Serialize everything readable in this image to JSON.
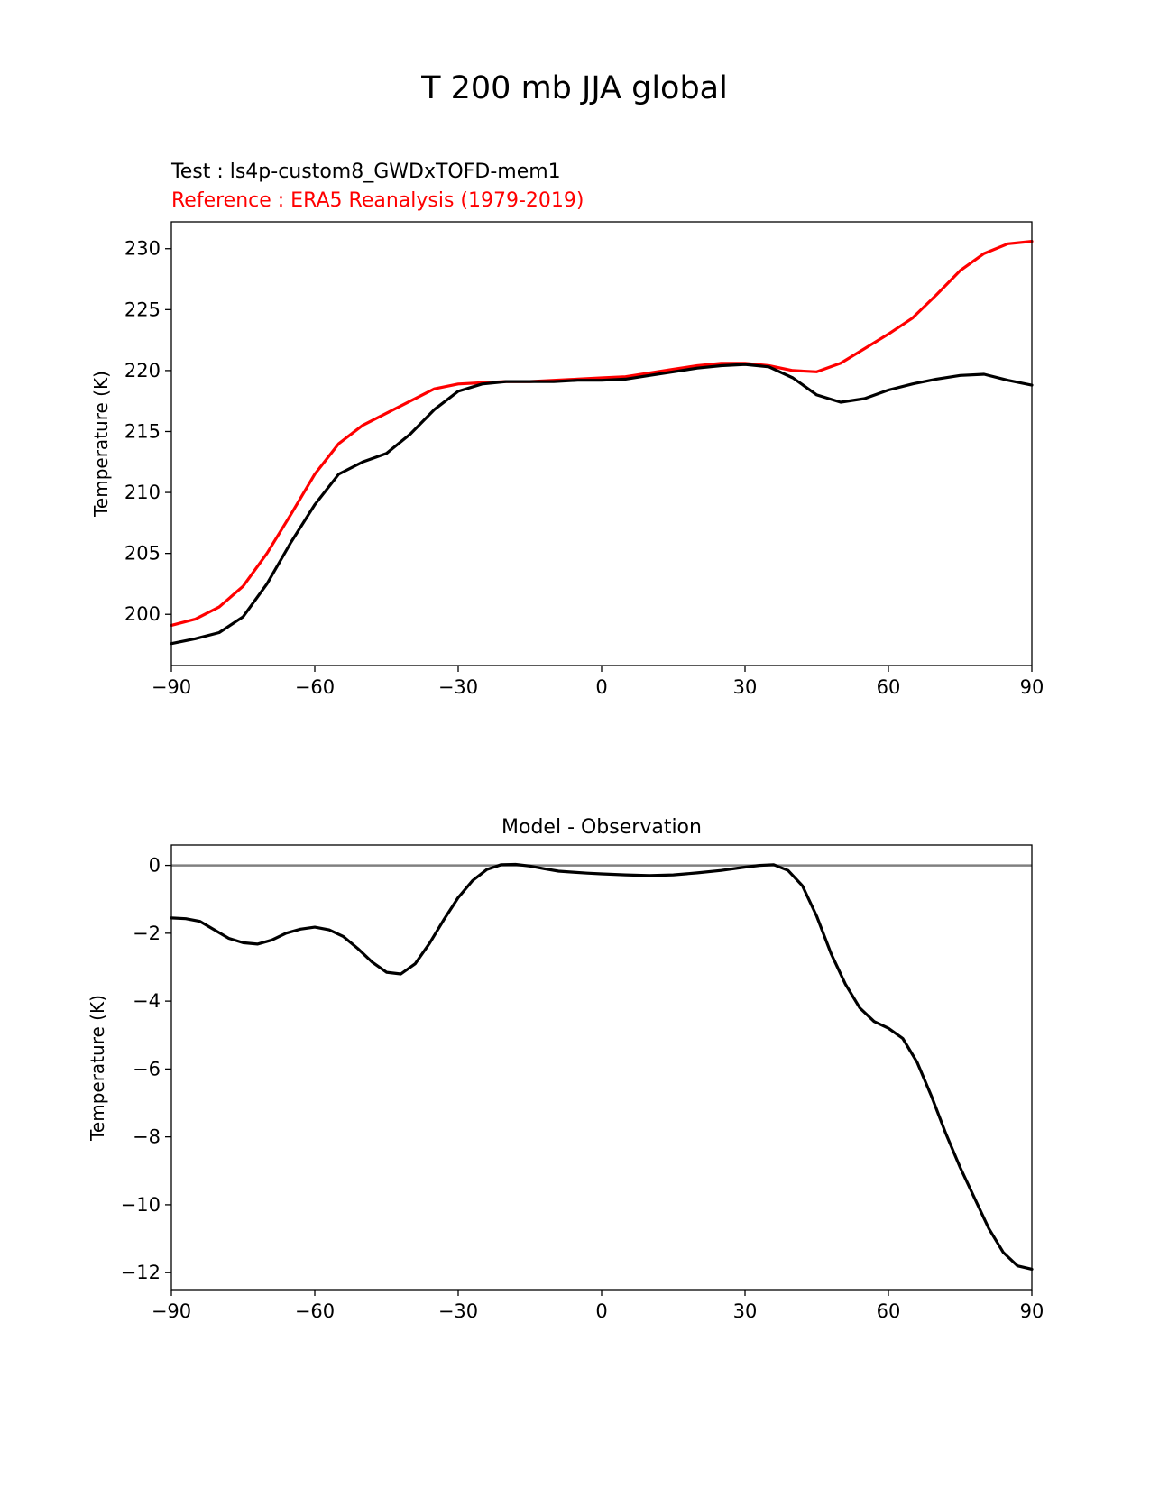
{
  "title": "T 200 mb JJA global",
  "colors": {
    "test": "#000000",
    "reference": "#ff0000",
    "zero_line": "#808080"
  },
  "chart_data": [
    {
      "type": "line",
      "id": "top",
      "test_label": "Test : ls4p-custom8_GWDxTOFD-mem1",
      "reference_label": "Reference : ERA5 Reanalysis (1979-2019)",
      "xlabel": "",
      "ylabel": "Temperature (K)",
      "xlim": [
        -90,
        90
      ],
      "ylim": [
        195.8,
        232.2
      ],
      "xticks": [
        -90,
        -60,
        -30,
        0,
        30,
        60,
        90
      ],
      "xtick_labels": [
        "−90",
        "−60",
        "−30",
        "0",
        "30",
        "60",
        "90"
      ],
      "yticks": [
        200,
        205,
        210,
        215,
        220,
        225,
        230
      ],
      "ytick_labels": [
        "200",
        "205",
        "210",
        "215",
        "220",
        "225",
        "230"
      ],
      "series": [
        {
          "name": "Reference : ERA5 Reanalysis (1979-2019)",
          "role": "reference",
          "x": [
            -90,
            -85,
            -80,
            -75,
            -70,
            -65,
            -60,
            -55,
            -50,
            -45,
            -40,
            -35,
            -30,
            -25,
            -20,
            -15,
            -10,
            -5,
            0,
            5,
            10,
            15,
            20,
            25,
            30,
            35,
            40,
            45,
            50,
            55,
            60,
            65,
            70,
            75,
            80,
            85,
            90
          ],
          "values": [
            199.1,
            199.6,
            200.6,
            202.3,
            205.0,
            208.2,
            211.5,
            214.0,
            215.5,
            216.5,
            217.5,
            218.5,
            218.9,
            219.0,
            219.1,
            219.1,
            219.2,
            219.3,
            219.4,
            219.5,
            219.8,
            220.1,
            220.4,
            220.6,
            220.6,
            220.4,
            220.0,
            219.9,
            220.6,
            221.8,
            223.0,
            224.3,
            226.2,
            228.2,
            229.6,
            230.4,
            230.6
          ]
        },
        {
          "name": "Test : ls4p-custom8_GWDxTOFD-mem1",
          "role": "test",
          "x": [
            -90,
            -85,
            -80,
            -75,
            -70,
            -65,
            -60,
            -55,
            -50,
            -45,
            -40,
            -35,
            -30,
            -25,
            -20,
            -15,
            -10,
            -5,
            0,
            5,
            10,
            15,
            20,
            25,
            30,
            35,
            40,
            45,
            50,
            55,
            60,
            65,
            70,
            75,
            80,
            85,
            90
          ],
          "values": [
            197.6,
            198.0,
            198.5,
            199.8,
            202.5,
            205.9,
            209.0,
            211.5,
            212.5,
            213.2,
            214.8,
            216.8,
            218.3,
            218.9,
            219.1,
            219.1,
            219.1,
            219.2,
            219.2,
            219.3,
            219.6,
            219.9,
            220.2,
            220.4,
            220.5,
            220.3,
            219.4,
            218.0,
            217.4,
            217.7,
            218.4,
            218.9,
            219.3,
            219.6,
            219.7,
            219.2,
            218.8
          ]
        }
      ]
    },
    {
      "type": "line",
      "id": "bottom",
      "title": "Model - Observation",
      "xlabel": "",
      "ylabel": "Temperature (K)",
      "xlim": [
        -90,
        90
      ],
      "ylim": [
        -12.5,
        0.6
      ],
      "zero_line": 0,
      "xticks": [
        -90,
        -60,
        -30,
        0,
        30,
        60,
        90
      ],
      "xtick_labels": [
        "−90",
        "−60",
        "−30",
        "0",
        "30",
        "60",
        "90"
      ],
      "yticks": [
        0,
        -2,
        -4,
        -6,
        -8,
        -10,
        -12
      ],
      "ytick_labels": [
        "0",
        "−2",
        "−4",
        "−6",
        "−8",
        "−10",
        "−12"
      ],
      "series": [
        {
          "name": "Model - Observation",
          "role": "difference",
          "x": [
            -90,
            -87,
            -84,
            -81,
            -78,
            -75,
            -72,
            -69,
            -66,
            -63,
            -60,
            -57,
            -54,
            -51,
            -48,
            -45,
            -42,
            -39,
            -36,
            -33,
            -30,
            -27,
            -24,
            -21,
            -18,
            -15,
            -12,
            -9,
            -6,
            -3,
            0,
            5,
            10,
            15,
            20,
            25,
            30,
            33,
            36,
            39,
            42,
            45,
            48,
            51,
            54,
            57,
            60,
            63,
            66,
            69,
            72,
            75,
            78,
            81,
            84,
            87,
            90
          ],
          "values": [
            -1.55,
            -1.57,
            -1.65,
            -1.9,
            -2.15,
            -2.28,
            -2.32,
            -2.2,
            -2.0,
            -1.88,
            -1.82,
            -1.9,
            -2.1,
            -2.45,
            -2.85,
            -3.15,
            -3.2,
            -2.9,
            -2.3,
            -1.6,
            -0.95,
            -0.45,
            -0.12,
            0.02,
            0.03,
            -0.02,
            -0.1,
            -0.17,
            -0.2,
            -0.23,
            -0.25,
            -0.28,
            -0.3,
            -0.28,
            -0.22,
            -0.15,
            -0.05,
            0.0,
            0.02,
            -0.15,
            -0.6,
            -1.5,
            -2.6,
            -3.5,
            -4.2,
            -4.6,
            -4.8,
            -5.1,
            -5.8,
            -6.8,
            -7.9,
            -8.9,
            -9.8,
            -10.7,
            -11.4,
            -11.8,
            -11.9
          ]
        }
      ]
    }
  ]
}
